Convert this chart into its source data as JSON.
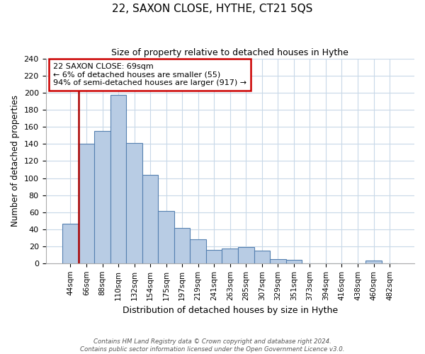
{
  "title": "22, SAXON CLOSE, HYTHE, CT21 5QS",
  "subtitle": "Size of property relative to detached houses in Hythe",
  "xlabel": "Distribution of detached houses by size in Hythe",
  "ylabel": "Number of detached properties",
  "bin_labels": [
    "44sqm",
    "66sqm",
    "88sqm",
    "110sqm",
    "132sqm",
    "154sqm",
    "175sqm",
    "197sqm",
    "219sqm",
    "241sqm",
    "263sqm",
    "285sqm",
    "307sqm",
    "329sqm",
    "351sqm",
    "373sqm",
    "394sqm",
    "416sqm",
    "438sqm",
    "460sqm",
    "482sqm"
  ],
  "bar_heights": [
    46,
    140,
    155,
    198,
    141,
    104,
    61,
    41,
    28,
    16,
    17,
    19,
    15,
    5,
    4,
    0,
    0,
    0,
    0,
    3,
    0
  ],
  "bar_color": "#b8cce4",
  "bar_edge_color": "#5580b0",
  "vline_color": "#aa0000",
  "annotation_line1": "22 SAXON CLOSE: 69sqm",
  "annotation_line2": "← 6% of detached houses are smaller (55)",
  "annotation_line3": "94% of semi-detached houses are larger (917) →",
  "annotation_box_color": "#cc0000",
  "ylim": [
    0,
    240
  ],
  "yticks": [
    0,
    20,
    40,
    60,
    80,
    100,
    120,
    140,
    160,
    180,
    200,
    220,
    240
  ],
  "footer_line1": "Contains HM Land Registry data © Crown copyright and database right 2024.",
  "footer_line2": "Contains public sector information licensed under the Open Government Licence v3.0."
}
